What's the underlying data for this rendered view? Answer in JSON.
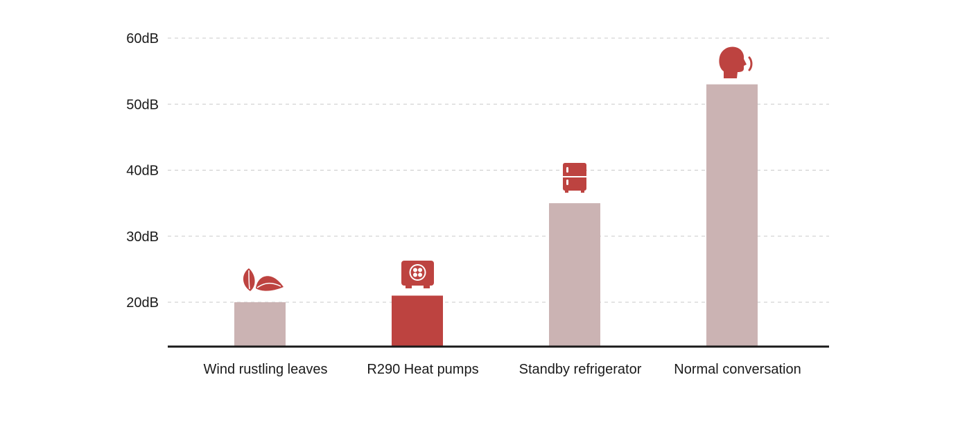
{
  "chart_data": {
    "type": "bar",
    "title": "",
    "xlabel": "",
    "ylabel": "",
    "categories": [
      "Wind rustling leaves",
      "R290 Heat pumps",
      "Standby refrigerator",
      "Normal conversation"
    ],
    "values": [
      20,
      21,
      35,
      53
    ],
    "unit": "dB",
    "yticks": [
      "20dB",
      "30dB",
      "40dB",
      "50dB",
      "60dB"
    ],
    "ytick_values": [
      20,
      30,
      40,
      50,
      60
    ],
    "ylim": [
      13,
      60
    ],
    "grid": true,
    "highlight_index": 1,
    "icons": [
      "leaves-icon",
      "heat-pump-icon",
      "refrigerator-icon",
      "speaking-head-icon"
    ],
    "colors": {
      "bar": "#cbb3b3",
      "highlight": "#bd4340",
      "icon": "#bd4340",
      "axis": "#1a1a1a"
    }
  }
}
